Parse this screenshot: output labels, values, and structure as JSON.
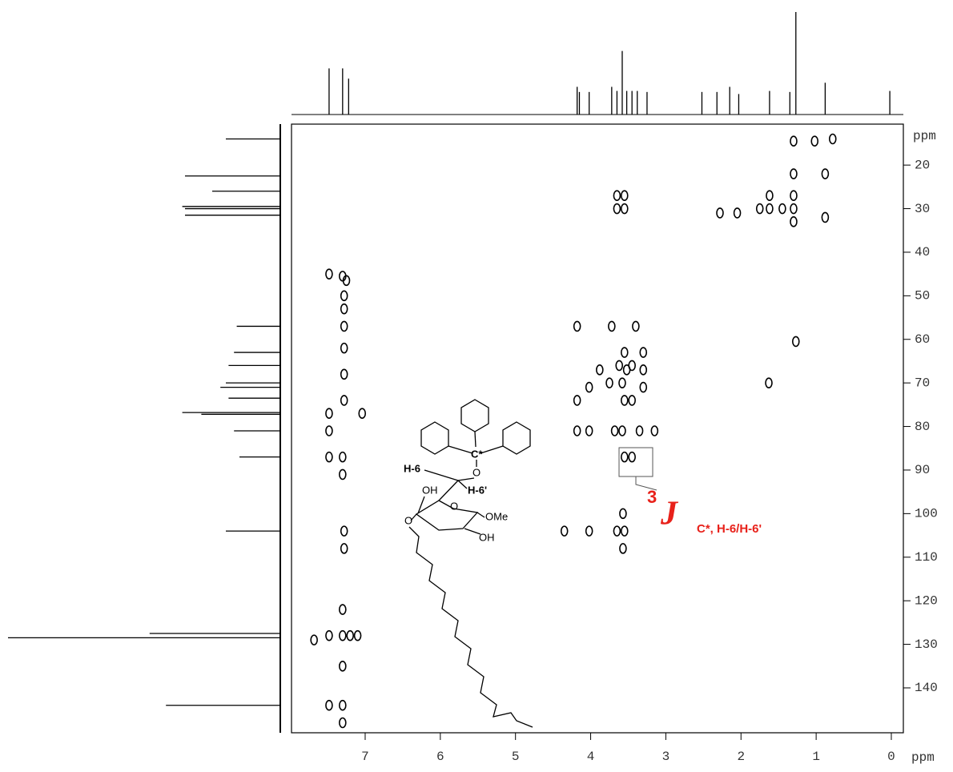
{
  "chart_data": {
    "type": "contour2d",
    "x_label": "ppm",
    "y_label": "ppm",
    "xlim": [
      7.98,
      -0.16
    ],
    "ylim": [
      10.6,
      150.3
    ],
    "xticks": [
      7,
      6,
      5,
      4,
      3,
      2,
      1,
      0
    ],
    "yticks": [
      20,
      30,
      40,
      50,
      60,
      70,
      80,
      90,
      100,
      110,
      120,
      130,
      140
    ],
    "color": "#000000",
    "peaks": {
      "x": [
        1.3,
        1.02,
        0.78,
        0.88,
        0.88,
        1.3,
        1.3,
        1.3,
        1.3,
        1.62,
        1.62,
        1.45,
        1.75,
        2.28,
        2.05,
        3.65,
        3.65,
        3.55,
        3.55,
        1.27,
        1.63,
        4.18,
        3.72,
        3.4,
        3.55,
        3.45,
        3.3,
        3.3,
        3.52,
        3.62,
        3.88,
        4.02,
        3.75,
        3.58,
        3.3,
        3.45,
        3.55,
        4.18,
        4.18,
        4.02,
        3.68,
        3.58,
        3.35,
        3.15,
        3.55,
        3.45,
        4.35,
        4.02,
        3.65,
        3.55,
        3.57,
        3.57,
        7.48,
        7.3,
        7.25,
        7.28,
        7.28,
        7.28,
        7.28,
        7.28,
        7.28,
        7.48,
        7.04,
        7.48,
        7.48,
        7.3,
        7.3,
        7.28,
        7.28,
        7.68,
        7.48,
        7.3,
        7.2,
        7.1,
        7.3,
        7.3,
        7.48,
        7.3,
        7.3
      ],
      "y": [
        14.5,
        14.5,
        14,
        22,
        32,
        22,
        27,
        30,
        33,
        27,
        30,
        30,
        30,
        31,
        31,
        27,
        30,
        27,
        30,
        60.5,
        70,
        57,
        57,
        57,
        63,
        66,
        63,
        67,
        67,
        66,
        67,
        71,
        70,
        70,
        71,
        74,
        74,
        74,
        81,
        81,
        81,
        81,
        81,
        81,
        87,
        87,
        104,
        104,
        104,
        104,
        100,
        108,
        45,
        45.5,
        46.5,
        50,
        53,
        57,
        62,
        68,
        74,
        77,
        77,
        81,
        87,
        87,
        91,
        104,
        108,
        129,
        128,
        128,
        128,
        128,
        122,
        135,
        144,
        144,
        148
      ]
    },
    "top_projection": {
      "x": [
        7.48,
        7.3,
        7.22,
        4.18,
        4.15,
        4.02,
        3.72,
        3.65,
        3.58,
        3.52,
        3.45,
        3.38,
        3.25,
        2.52,
        2.32,
        2.15,
        2.03,
        1.62,
        1.35,
        1.27,
        0.88,
        0.02
      ],
      "values": [
        45,
        45,
        35,
        27,
        22,
        22,
        27,
        23,
        62,
        23,
        23,
        23,
        22,
        22,
        22,
        27,
        20,
        23,
        22,
        100,
        31,
        23
      ]
    },
    "left_projection": {
      "y": [
        14,
        22.5,
        26,
        29.5,
        30,
        31.5,
        57,
        63,
        66,
        70,
        71,
        73.5,
        76.8,
        77.2,
        81,
        87,
        104,
        127.5,
        128.5,
        144
      ],
      "values": [
        20,
        35,
        25,
        36,
        35,
        35,
        16,
        17,
        19,
        20,
        22,
        19,
        36,
        29,
        17,
        15,
        20,
        48,
        100,
        42
      ]
    },
    "molecule": {
      "c_star": "C*",
      "o_link": "O",
      "h6": "H-6",
      "h6p": "H-6'",
      "oh4": "OH",
      "o_ring": "O",
      "ome": "OMe",
      "oh2": "OH",
      "o3": "O"
    },
    "coupling": {
      "superscript": "3",
      "symbol": "J",
      "subscript": "C*, H-6/H-6'"
    }
  }
}
